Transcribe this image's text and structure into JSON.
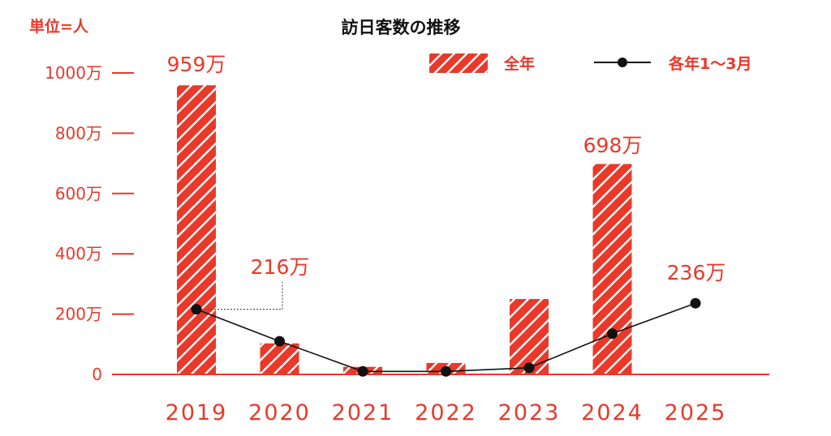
{
  "unit_label": "単位=人",
  "title": "訪日客数の推移",
  "legend": [
    {
      "label": "全年",
      "type": "hatched-bar",
      "color": "#e8392a"
    },
    {
      "label": "各年1～3月",
      "type": "line-marker",
      "color": "#111111"
    }
  ],
  "y_ticks": [
    {
      "label": "1000万",
      "value": 1000
    },
    {
      "label": "800万",
      "value": 800
    },
    {
      "label": "600万",
      "value": 600
    },
    {
      "label": "400万",
      "value": 400
    },
    {
      "label": "200万",
      "value": 200
    },
    {
      "label": "0",
      "value": 0
    }
  ],
  "annotations": {
    "bar_2019": "959万",
    "bar_2024": "698万",
    "line_2019": "216万",
    "line_2025": "236万"
  },
  "colors": {
    "accent": "#e8392a",
    "line": "#111111",
    "stripe": "#ffffff"
  },
  "chart_data": {
    "type": "bar",
    "title": "訪日客数の推移",
    "xlabel": "",
    "ylabel": "単位=人",
    "ylim": [
      0,
      1000
    ],
    "grid": false,
    "legend_position": "top-right",
    "categories": [
      "2019",
      "2020",
      "2021",
      "2022",
      "2023",
      "2024",
      "2025"
    ],
    "series": [
      {
        "name": "全年",
        "type": "bar",
        "values": [
          959,
          103,
          25,
          38,
          250,
          698,
          null
        ],
        "labels": {
          "2019": "959万",
          "2024": "698万"
        }
      },
      {
        "name": "各年1～3月",
        "type": "line",
        "values": [
          216,
          110,
          10,
          10,
          22,
          135,
          236
        ],
        "labels": {
          "2019": "216万",
          "2025": "236万"
        }
      }
    ],
    "unit": "万人"
  }
}
